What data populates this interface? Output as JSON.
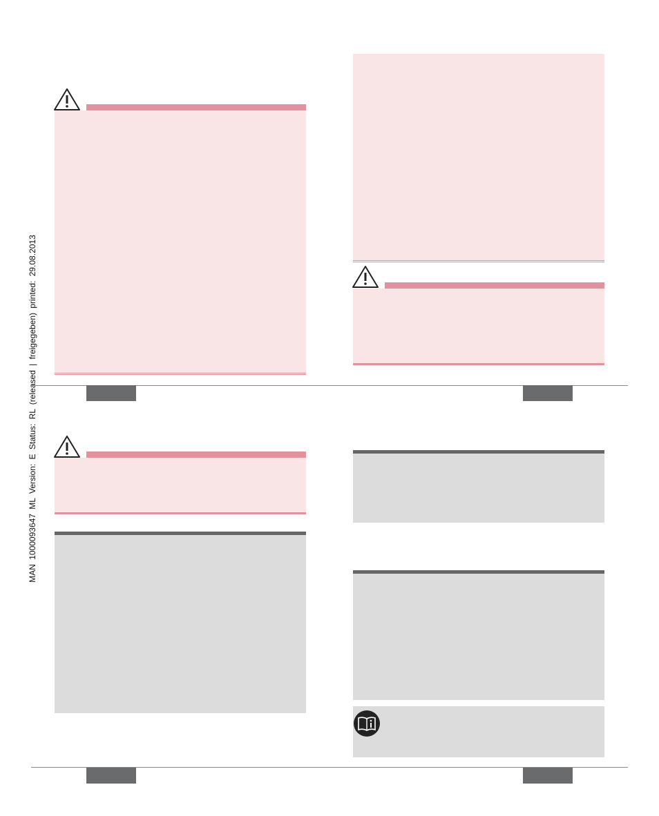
{
  "sidebar": {
    "text": "MAN 1000093647 ML Version: E Status: RL (released | freigegeben) printed: 29.08.2013"
  }
}
